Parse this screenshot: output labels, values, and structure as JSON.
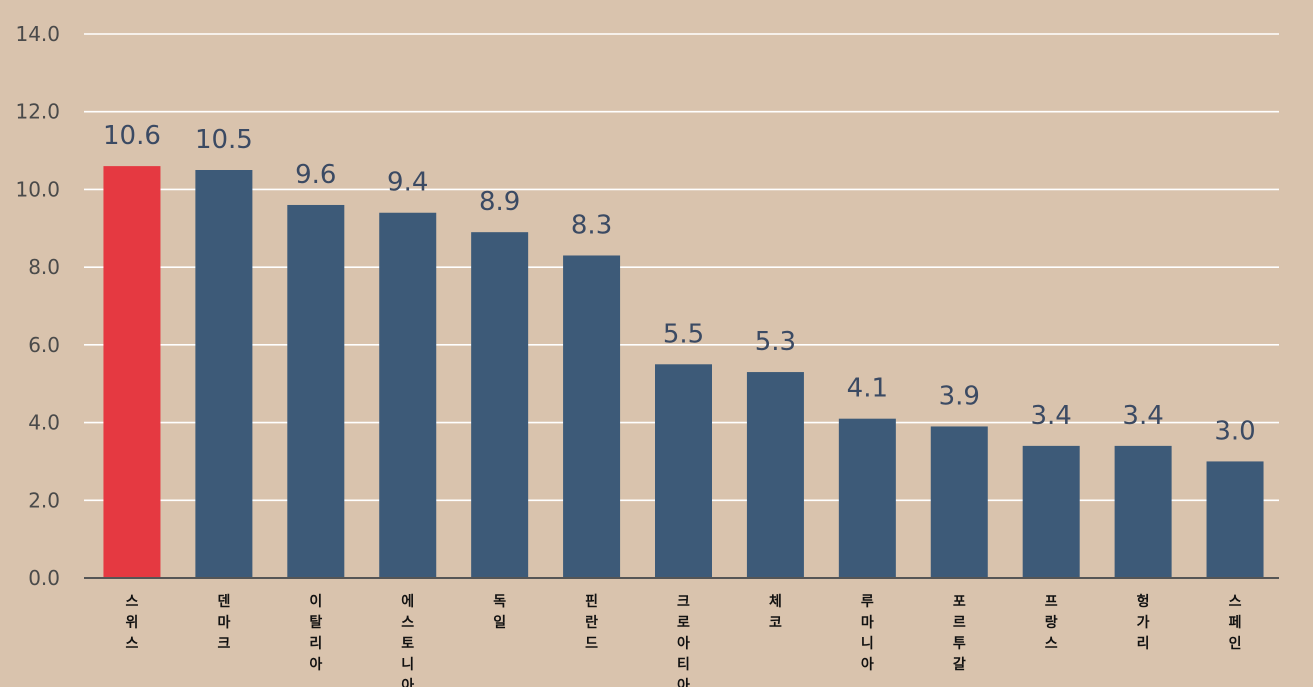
{
  "chart_data": {
    "type": "bar",
    "categories": [
      "스위스",
      "덴마크",
      "이탈리아",
      "에스토니아",
      "독일",
      "핀란드",
      "크로아티아",
      "체코",
      "루마니아",
      "포르투갈",
      "프랑스",
      "헝가리",
      "스페인"
    ],
    "values": [
      10.6,
      10.5,
      9.6,
      9.4,
      8.9,
      8.3,
      5.5,
      5.3,
      4.1,
      3.9,
      3.4,
      3.4,
      3.0
    ],
    "value_labels": [
      "10.6",
      "10.5",
      "9.6",
      "9.4",
      "8.9",
      "8.3",
      "5.5",
      "5.3",
      "4.1",
      "3.9",
      "3.4",
      "3.4",
      "3.0"
    ],
    "ylim": [
      0,
      14
    ],
    "yticks": [
      "0.0",
      "2.0",
      "4.0",
      "6.0",
      "8.0",
      "10.0",
      "12.0",
      "14.0"
    ],
    "grid": true,
    "highlight_index": 0,
    "colors": {
      "background": "#d9c3ad",
      "bar": "#3d5a78",
      "highlight_bar": "#e53941",
      "highlight_label": "#b93a3a",
      "value_label": "#3b4a63",
      "gridline": "#ffffff",
      "axis": "#555555",
      "category_text": "#111111"
    }
  }
}
